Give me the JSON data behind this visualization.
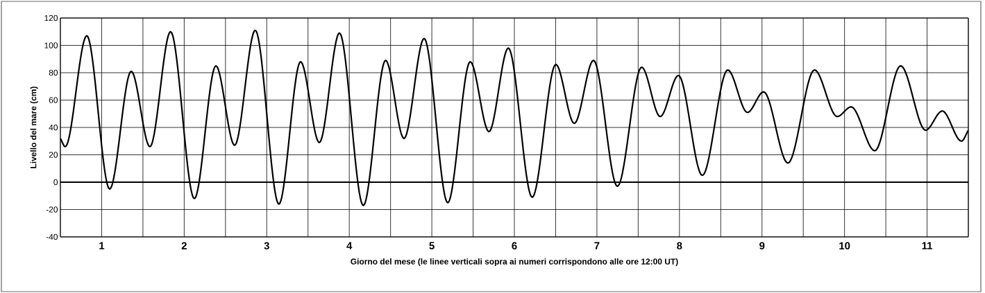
{
  "chart_data": {
    "type": "line",
    "xlabel": "Giorno del mese (le linee verticali sopra ai numeri corrispondono alle ore 12:00 UT)",
    "ylabel": "Livello del mare (cm)",
    "x": [
      1.0,
      1.059,
      1.32,
      1.597,
      1.858,
      2.085,
      2.335,
      2.623,
      2.884,
      3.111,
      3.361,
      3.647,
      3.91,
      4.137,
      4.381,
      4.67,
      4.94,
      5.163,
      5.407,
      5.693,
      5.965,
      6.192,
      6.427,
      6.716,
      7.002,
      7.226,
      7.459,
      7.748,
      8.042,
      8.267,
      8.488,
      8.777,
      9.085,
      9.324,
      9.52,
      9.814,
      10.136,
      10.411,
      10.58,
      10.866,
      11.18,
      11.482,
      11.684,
      11.917,
      12.0
    ],
    "series": [
      {
        "color": "#000000",
        "values": [
          32,
          26,
          107,
          -5,
          81,
          26,
          110,
          -12,
          85,
          27,
          111,
          -16,
          88,
          29,
          109,
          -17,
          89,
          32,
          105,
          -15,
          88,
          37,
          98,
          -11,
          86,
          43,
          89,
          -3,
          84,
          48,
          78,
          5,
          82,
          51,
          66,
          14,
          82,
          48,
          55,
          23,
          85,
          38,
          52,
          30,
          38
        ]
      }
    ],
    "xlim": [
      1,
      12
    ],
    "ylim": [
      -40,
      120
    ],
    "xticks": [
      {
        "value": 1,
        "label": null
      },
      {
        "value": 1.5,
        "label": "1"
      },
      {
        "value": 2,
        "label": null
      },
      {
        "value": 2.5,
        "label": "2"
      },
      {
        "value": 3,
        "label": null
      },
      {
        "value": 3.5,
        "label": "3"
      },
      {
        "value": 4,
        "label": null
      },
      {
        "value": 4.5,
        "label": "4"
      },
      {
        "value": 5,
        "label": null
      },
      {
        "value": 5.5,
        "label": "5"
      },
      {
        "value": 6,
        "label": null
      },
      {
        "value": 6.5,
        "label": "6"
      },
      {
        "value": 7,
        "label": null
      },
      {
        "value": 7.5,
        "label": "7"
      },
      {
        "value": 8,
        "label": null
      },
      {
        "value": 8.5,
        "label": "8"
      },
      {
        "value": 9,
        "label": null
      },
      {
        "value": 9.5,
        "label": "9"
      },
      {
        "value": 10,
        "label": null
      },
      {
        "value": 10.5,
        "label": "10"
      },
      {
        "value": 11,
        "label": null
      },
      {
        "value": 11.5,
        "label": "11"
      },
      {
        "value": 12,
        "label": null
      }
    ],
    "yticks": [
      -40,
      -20,
      0,
      20,
      40,
      60,
      80,
      100,
      120
    ],
    "ref_lines": [
      {
        "axis": "y",
        "value": 0,
        "color": "#000000"
      }
    ],
    "grid": true,
    "marker": "none",
    "line_style": "solid"
  }
}
